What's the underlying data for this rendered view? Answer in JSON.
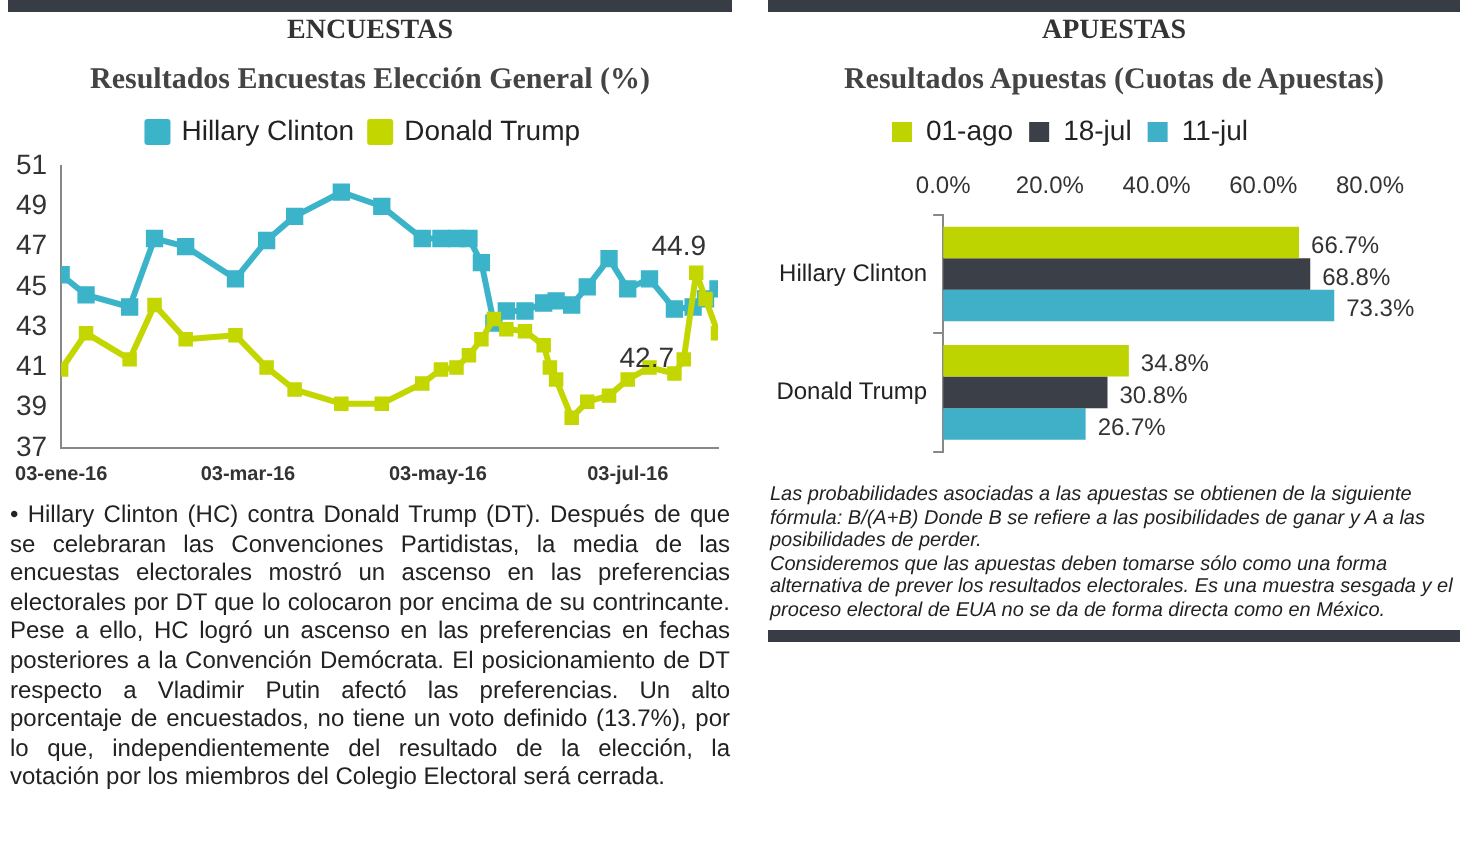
{
  "chart_data": [
    {
      "type": "line",
      "title": "ENCUESTAS",
      "subtitle": "Resultados Encuestas Elección General (%)",
      "legend": "top",
      "marker": "square",
      "grid": false,
      "xlim": [
        "2016-01-03",
        "2016-08-01"
      ],
      "xticks": [
        {
          "value": "2016-01-03",
          "label": "03-ene-16"
        },
        {
          "value": "2016-03-03",
          "label": "03-mar-16"
        },
        {
          "value": "2016-05-03",
          "label": "03-may-16"
        },
        {
          "value": "2016-07-03",
          "label": "03-jul-16"
        }
      ],
      "ylim": [
        37,
        51
      ],
      "yticks": [
        37,
        39,
        41,
        43,
        45,
        47,
        49,
        51
      ],
      "x": [
        "2016-01-03",
        "2016-01-11",
        "2016-01-25",
        "2016-02-02",
        "2016-02-12",
        "2016-02-28",
        "2016-03-09",
        "2016-03-18",
        "2016-04-02",
        "2016-04-15",
        "2016-04-28",
        "2016-05-04",
        "2016-05-09",
        "2016-05-13",
        "2016-05-17",
        "2016-05-21",
        "2016-05-25",
        "2016-05-31",
        "2016-06-06",
        "2016-06-10",
        "2016-06-15",
        "2016-06-20",
        "2016-06-27",
        "2016-07-03",
        "2016-07-10",
        "2016-07-18",
        "2016-07-24",
        "2016-07-28",
        "2016-08-01"
      ],
      "series": [
        {
          "name": "Hillary Clinton",
          "color": "#3bb3c9",
          "values": [
            45.6,
            44.6,
            44.0,
            47.4,
            47.0,
            45.4,
            47.3,
            48.5,
            49.7,
            49.0,
            47.4,
            47.4,
            47.4,
            47.4,
            46.2,
            43.2,
            43.8,
            43.8,
            44.2,
            44.3,
            44.1,
            45.0,
            46.4,
            44.9,
            45.4,
            43.9,
            44.0,
            44.4,
            44.9
          ]
        },
        {
          "name": "Donald Trump",
          "color": "#c3d600",
          "x": [
            "2016-01-03",
            "2016-01-11",
            "2016-01-25",
            "2016-02-02",
            "2016-02-12",
            "2016-02-28",
            "2016-03-09",
            "2016-03-18",
            "2016-04-02",
            "2016-04-15",
            "2016-04-28",
            "2016-05-04",
            "2016-05-09",
            "2016-05-13",
            "2016-05-17",
            "2016-05-21",
            "2016-05-25",
            "2016-05-31",
            "2016-06-06",
            "2016-06-08",
            "2016-06-10",
            "2016-06-15",
            "2016-06-20",
            "2016-06-27",
            "2016-07-03",
            "2016-07-10",
            "2016-07-18",
            "2016-07-21",
            "2016-07-25",
            "2016-07-28",
            "2016-08-01"
          ],
          "values": [
            40.9,
            42.7,
            41.4,
            44.1,
            42.4,
            42.6,
            41.0,
            39.9,
            39.2,
            39.2,
            40.2,
            40.9,
            41.0,
            41.6,
            42.4,
            43.4,
            42.9,
            42.8,
            42.1,
            41.0,
            40.4,
            38.5,
            39.3,
            39.6,
            40.4,
            41.0,
            40.7,
            41.4,
            45.7,
            44.4,
            42.7
          ]
        }
      ],
      "annotations": [
        {
          "text": "44.9",
          "x": "2016-08-01",
          "y": 44.9
        },
        {
          "text": "42.7",
          "x": "2016-08-01",
          "y": 42.7
        },
        "• Hillary Clinton (HC) contra Donald Trump (DT). Después de que se celebraran las Convenciones Partidistas, la media de las encuestas electorales mostró un ascenso en las preferencias electorales por DT que lo colocaron por encima de su contrincante. Pese a ello, HC logró un ascenso en las preferencias en fechas posteriores a la Convención Demócrata. El posicionamiento de DT respecto a Vladimir Putin afectó las preferencias. Un alto porcentaje de encuestados, no tiene un voto definido (13.7%), por lo que, independientemente del resultado de la elección, la votación por los miembros del Colegio Electoral será cerrada."
      ]
    },
    {
      "type": "bar",
      "orientation": "horizontal",
      "title": "APUESTAS",
      "subtitle": "Resultados Apuestas (Cuotas de Apuestas)",
      "legend": "top",
      "grid": false,
      "xlim": [
        0,
        80
      ],
      "xticks": [
        {
          "value": 0,
          "label": "0.0%"
        },
        {
          "value": 20,
          "label": "20.0%"
        },
        {
          "value": 40,
          "label": "40.0%"
        },
        {
          "value": 60,
          "label": "60.0%"
        },
        {
          "value": 80,
          "label": "80.0%"
        }
      ],
      "categories": [
        "Hillary Clinton",
        "Donald Trump"
      ],
      "series": [
        {
          "name": "01-ago",
          "color": "#bdd400",
          "values": [
            66.7,
            34.8
          ],
          "value_labels": [
            "66.7%",
            "34.8%"
          ]
        },
        {
          "name": "18-jul",
          "color": "#3a3f48",
          "values": [
            68.8,
            30.8
          ],
          "value_labels": [
            "68.8%",
            "30.8%"
          ]
        },
        {
          "name": "11-jul",
          "color": "#3fb0c8",
          "values": [
            73.3,
            26.7
          ],
          "value_labels": [
            "73.3%",
            "26.7%"
          ]
        }
      ],
      "annotations": [
        "Las probabilidades asociadas a las apuestas se obtienen de la siguiente fórmula: B/(A+B)  Donde B se refiere a las posibilidades de ganar y A a las posibilidades de perder.",
        "Consideremos que las apuestas deben tomarse sólo como una forma alternativa de prever los resultados electorales. Es una muestra sesgada y el proceso electoral de EUA no se da de forma directa como en México."
      ]
    }
  ]
}
